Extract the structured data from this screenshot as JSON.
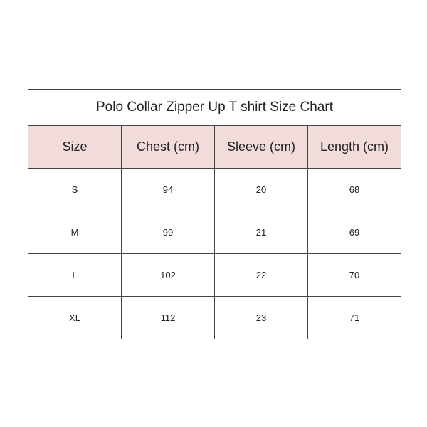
{
  "chart_data": {
    "type": "table",
    "title": "Polo Collar Zipper Up T shirt Size Chart",
    "columns": [
      "Size",
      "Chest (cm)",
      "Sleeve (cm)",
      "Length (cm)"
    ],
    "rows": [
      [
        "S",
        "94",
        "20",
        "68"
      ],
      [
        "M",
        "99",
        "21",
        "69"
      ],
      [
        "L",
        "102",
        "22",
        "70"
      ],
      [
        "XL",
        "112",
        "23",
        "71"
      ]
    ],
    "header_color": "#f2dcdb"
  }
}
